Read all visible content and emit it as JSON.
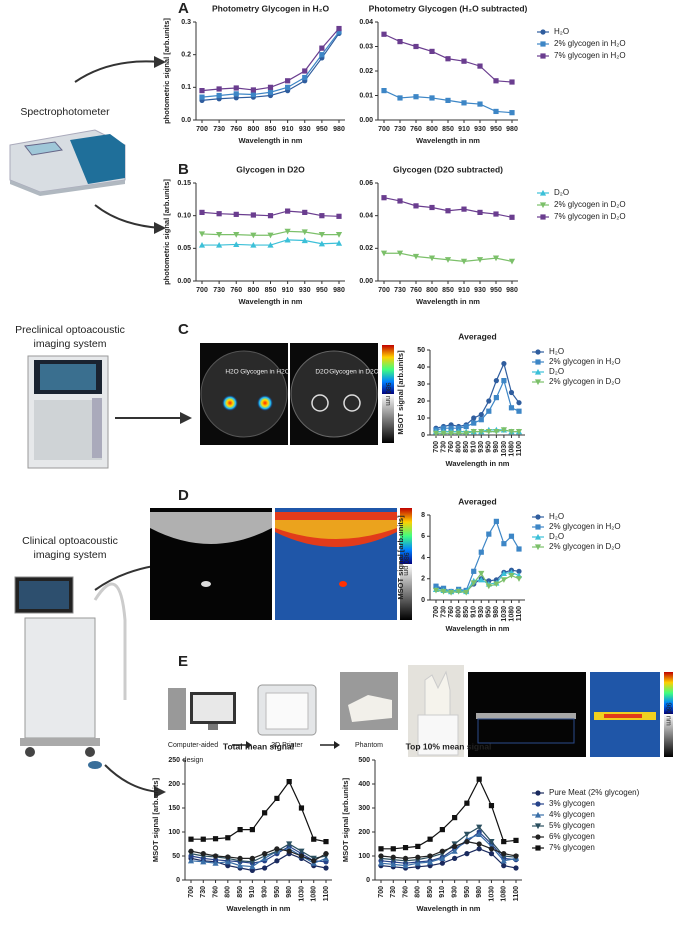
{
  "figure": {
    "panels": [
      "A",
      "B",
      "C",
      "D",
      "E"
    ],
    "devices": [
      [
        "Spectrophotometer"
      ],
      [
        "Preclinical optoacoustic",
        "imaging system"
      ],
      [
        "Clinical optoacoustic",
        "imaging system"
      ]
    ],
    "workflow": [
      [
        "Computer-aided",
        "design"
      ],
      [
        "3D Printer"
      ],
      [
        "Phantom"
      ]
    ],
    "image_labels": [
      "H2O",
      "Glycogen in H2O",
      "D2O",
      "Glycogen in D2O"
    ],
    "colorbar_label": "980 nm"
  },
  "chart_data": [
    {
      "type": "line",
      "title": "Photometry Glycogen in H₂O",
      "x_label": "Wavelength in nm",
      "y_label": "photometric signal [arb.units]",
      "categories": [
        "700",
        "730",
        "760",
        "800",
        "850",
        "910",
        "930",
        "950",
        "980"
      ],
      "ylim": [
        0,
        0.3
      ],
      "yticks": [
        {
          "value": 0,
          "label": "0.0"
        },
        0.1,
        0.2,
        0.3
      ],
      "legend": true,
      "series": [
        {
          "name": "H₂O",
          "color": "#2f5d9e",
          "marker": "circle",
          "values": [
            0.06,
            0.065,
            0.068,
            0.07,
            0.075,
            0.09,
            0.12,
            0.19,
            0.265
          ]
        },
        {
          "name": "2% glycogen in H₂O",
          "color": "#3d86c6",
          "marker": "square",
          "values": [
            0.07,
            0.075,
            0.08,
            0.078,
            0.085,
            0.1,
            0.13,
            0.2,
            0.27
          ]
        },
        {
          "name": "7% glycogen in H₂O",
          "color": "#6a3d8f",
          "marker": "square",
          "values": [
            0.09,
            0.095,
            0.098,
            0.092,
            0.1,
            0.12,
            0.15,
            0.22,
            0.28
          ]
        }
      ]
    },
    {
      "type": "line",
      "title": "Photometry Glycogen (H₂O subtracted)",
      "x_label": "Wavelength in nm",
      "categories": [
        "700",
        "730",
        "760",
        "800",
        "850",
        "910",
        "930",
        "950",
        "980"
      ],
      "ylim": [
        0,
        0.04
      ],
      "yticks": [
        {
          "value": 0,
          "label": "0.00"
        },
        0.01,
        0.02,
        0.03,
        0.04
      ],
      "series": [
        {
          "name": "2% glycogen in H₂O",
          "color": "#3d86c6",
          "marker": "square",
          "values": [
            0.012,
            0.009,
            0.0095,
            0.009,
            0.008,
            0.007,
            0.0065,
            0.0035,
            0.003
          ]
        },
        {
          "name": "7% glycogen in H₂O",
          "color": "#6a3d8f",
          "marker": "square",
          "values": [
            0.035,
            0.032,
            0.03,
            0.028,
            0.025,
            0.024,
            0.022,
            0.016,
            0.0155
          ]
        }
      ]
    },
    {
      "type": "line",
      "title": "Glycogen in D2O",
      "x_label": "Wavelength in nm",
      "y_label": "photometric signal [arb.units]",
      "categories": [
        "700",
        "730",
        "760",
        "800",
        "850",
        "910",
        "930",
        "950",
        "980"
      ],
      "ylim": [
        0,
        0.15
      ],
      "yticks": [
        {
          "value": 0,
          "label": "0.00"
        },
        0.05,
        {
          "value": 0.1,
          "label": "0.10"
        },
        0.15
      ],
      "legend": true,
      "series": [
        {
          "name": "D₂O",
          "color": "#3cc0d8",
          "marker": "triangle",
          "values": [
            0.055,
            0.055,
            0.056,
            0.055,
            0.055,
            0.063,
            0.062,
            0.057,
            0.058
          ]
        },
        {
          "name": "2% glycogen in D₂O",
          "color": "#7cc06a",
          "marker": "down",
          "values": [
            0.072,
            0.071,
            0.071,
            0.07,
            0.07,
            0.076,
            0.075,
            0.071,
            0.071
          ]
        },
        {
          "name": "7% glycogen in D₂O",
          "color": "#6a3d8f",
          "marker": "square",
          "values": [
            0.105,
            0.103,
            0.102,
            0.101,
            0.1,
            0.107,
            0.105,
            0.1,
            0.099
          ]
        }
      ]
    },
    {
      "type": "line",
      "title": "Glycogen (D2O subtracted)",
      "x_label": "Wavelength in nm",
      "categories": [
        "700",
        "730",
        "760",
        "800",
        "850",
        "910",
        "930",
        "950",
        "980"
      ],
      "ylim": [
        0,
        0.06
      ],
      "yticks": [
        {
          "value": 0,
          "label": "0.00"
        },
        0.02,
        0.04,
        0.06
      ],
      "series": [
        {
          "name": "2% glycogen in D₂O",
          "color": "#7cc06a",
          "marker": "down",
          "values": [
            0.017,
            0.017,
            0.015,
            0.014,
            0.013,
            0.012,
            0.013,
            0.014,
            0.012
          ]
        },
        {
          "name": "7% glycogen in D₂O",
          "color": "#6a3d8f",
          "marker": "square",
          "values": [
            0.051,
            0.049,
            0.046,
            0.045,
            0.043,
            0.044,
            0.042,
            0.041,
            0.039
          ]
        }
      ]
    },
    {
      "type": "line",
      "title": "Averaged",
      "x_label": "Wavelength in nm",
      "y_label": "MSOT signal [arb.units]",
      "categories": [
        "700",
        "730",
        "760",
        "800",
        "850",
        "910",
        "930",
        "950",
        "980",
        "1030",
        "1080",
        "1100"
      ],
      "ylim": [
        0,
        50
      ],
      "yticks": [
        0,
        10,
        20,
        30,
        40,
        50
      ],
      "legend": true,
      "series": [
        {
          "name": "H₂O",
          "color": "#2f5d9e",
          "marker": "circle",
          "values": [
            4,
            5,
            6,
            5,
            6,
            10,
            12,
            20,
            32,
            42,
            25,
            19
          ]
        },
        {
          "name": "2% glycogen in H₂O",
          "color": "#3d86c6",
          "marker": "square",
          "values": [
            3,
            4,
            4,
            4,
            5,
            7,
            9,
            14,
            22,
            32,
            16,
            14
          ]
        },
        {
          "name": "D₂O",
          "color": "#3cc0d8",
          "marker": "triangle",
          "values": [
            2,
            2,
            2,
            2,
            2,
            2,
            2,
            3,
            3,
            3,
            2,
            2
          ]
        },
        {
          "name": "2% glycogen in D₂O",
          "color": "#7cc06a",
          "marker": "down",
          "values": [
            1,
            1,
            1,
            1,
            1,
            2,
            2,
            2,
            2,
            3,
            2,
            2
          ]
        }
      ]
    },
    {
      "type": "line",
      "title": "Averaged",
      "x_label": "Wavelength in nm",
      "y_label": "MSOT signal [arb.units]",
      "categories": [
        "700",
        "730",
        "760",
        "800",
        "850",
        "910",
        "930",
        "950",
        "980",
        "1030",
        "1080",
        "1100"
      ],
      "ylim": [
        0,
        8
      ],
      "yticks": [
        0,
        2,
        4,
        6,
        8
      ],
      "legend": true,
      "series": [
        {
          "name": "H₂O",
          "color": "#2f5d9e",
          "marker": "circle",
          "values": [
            1.2,
            1.0,
            0.8,
            0.9,
            0.8,
            1.5,
            2.0,
            1.8,
            1.9,
            2.6,
            2.8,
            2.7
          ]
        },
        {
          "name": "2% glycogen in H₂O",
          "color": "#3d86c6",
          "marker": "square",
          "values": [
            1.3,
            1.1,
            0.8,
            1.0,
            0.9,
            2.7,
            4.5,
            6.2,
            7.4,
            5.3,
            6.0,
            4.8
          ]
        },
        {
          "name": "D₂O",
          "color": "#3cc0d8",
          "marker": "triangle",
          "values": [
            1.0,
            0.9,
            0.8,
            0.9,
            0.8,
            1.8,
            1.9,
            1.5,
            1.6,
            2.5,
            2.6,
            2.3
          ]
        },
        {
          "name": "2% glycogen in D₂O",
          "color": "#7cc06a",
          "marker": "down",
          "values": [
            0.9,
            0.8,
            0.7,
            0.8,
            0.7,
            1.6,
            2.5,
            1.3,
            1.5,
            1.9,
            2.3,
            2.0
          ]
        }
      ]
    },
    {
      "type": "line",
      "title": "Total mean signal",
      "x_label": "Wavelength in nm",
      "y_label": "MSOT signal [arb.units]",
      "categories": [
        "700",
        "730",
        "760",
        "800",
        "850",
        "910",
        "930",
        "950",
        "980",
        "1030",
        "1080",
        "1100"
      ],
      "ylim": [
        0,
        250
      ],
      "yticks": [
        0,
        50,
        100,
        150,
        200,
        250
      ],
      "legend": true,
      "series": [
        {
          "name": "Pure Meat (2% glycogen)",
          "color": "#1a2a5e",
          "marker": "circle",
          "values": [
            45,
            40,
            38,
            30,
            25,
            20,
            25,
            40,
            55,
            45,
            30,
            25
          ]
        },
        {
          "name": "3% glycogen",
          "color": "#26438a",
          "marker": "circle",
          "values": [
            50,
            45,
            42,
            40,
            38,
            35,
            40,
            55,
            70,
            55,
            40,
            38
          ]
        },
        {
          "name": "4% glycogen",
          "color": "#3a6fa8",
          "marker": "triangle",
          "values": [
            40,
            38,
            35,
            38,
            30,
            28,
            45,
            60,
            65,
            50,
            35,
            45
          ]
        },
        {
          "name": "5% glycogen",
          "color": "#2b4f5f",
          "marker": "down",
          "values": [
            55,
            50,
            48,
            45,
            40,
            38,
            50,
            60,
            75,
            60,
            45,
            50
          ]
        },
        {
          "name": "6% glycogen",
          "color": "#222222",
          "marker": "circle",
          "values": [
            60,
            55,
            50,
            48,
            45,
            45,
            55,
            65,
            60,
            50,
            40,
            55
          ]
        },
        {
          "name": "7% glycogen",
          "color": "#111111",
          "marker": "square",
          "values": [
            85,
            85,
            86,
            88,
            105,
            105,
            140,
            170,
            205,
            150,
            85,
            80
          ]
        }
      ]
    },
    {
      "type": "line",
      "title": "Top 10% mean signal",
      "x_label": "Wavelength in nm",
      "y_label": "MSOT signal [arb.units]",
      "categories": [
        "700",
        "730",
        "760",
        "800",
        "850",
        "910",
        "930",
        "950",
        "980",
        "1030",
        "1080",
        "1100"
      ],
      "ylim": [
        0,
        500
      ],
      "yticks": [
        0,
        100,
        200,
        300,
        400,
        500
      ],
      "series": [
        {
          "name": "Pure Meat (2% glycogen)",
          "color": "#1a2a5e",
          "marker": "circle",
          "values": [
            60,
            55,
            50,
            55,
            60,
            70,
            90,
            110,
            130,
            110,
            60,
            50
          ]
        },
        {
          "name": "3% glycogen",
          "color": "#26438a",
          "marker": "circle",
          "values": [
            80,
            75,
            70,
            75,
            80,
            95,
            130,
            160,
            200,
            150,
            90,
            85
          ]
        },
        {
          "name": "4% glycogen",
          "color": "#3a6fa8",
          "marker": "triangle",
          "values": [
            70,
            65,
            60,
            70,
            75,
            90,
            120,
            170,
            190,
            140,
            80,
            90
          ]
        },
        {
          "name": "5% glycogen",
          "color": "#2b4f5f",
          "marker": "down",
          "values": [
            90,
            85,
            80,
            85,
            95,
            110,
            150,
            190,
            220,
            160,
            100,
            95
          ]
        },
        {
          "name": "6% glycogen",
          "color": "#222222",
          "marker": "circle",
          "values": [
            100,
            95,
            90,
            95,
            100,
            120,
            140,
            160,
            150,
            130,
            110,
            100
          ]
        },
        {
          "name": "7% glycogen",
          "color": "#111111",
          "marker": "square",
          "values": [
            130,
            130,
            135,
            140,
            170,
            210,
            260,
            320,
            420,
            310,
            160,
            165
          ]
        }
      ]
    }
  ]
}
